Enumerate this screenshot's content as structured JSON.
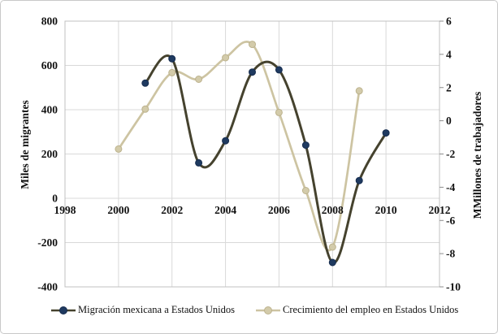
{
  "chart_data": {
    "type": "line",
    "smooth": true,
    "title": "",
    "x_axis": {
      "min": 1998,
      "max": 2012,
      "step": 2,
      "tick_labels": [
        "1998",
        "2000",
        "2002",
        "2004",
        "2006",
        "2008",
        "2010",
        "2012"
      ]
    },
    "left_axis": {
      "title": "Miles de migrantes",
      "min": -400,
      "max": 800,
      "step": 200,
      "tick_labels": [
        "800",
        "600",
        "400",
        "200",
        "0",
        "-200",
        "-400"
      ]
    },
    "right_axis": {
      "title": "MMillones de trabajadores",
      "min": -10,
      "max": 6,
      "step": 2,
      "tick_labels": [
        "6",
        "4",
        "2",
        "0",
        "-2",
        "-4",
        "-6",
        "-8",
        "-10"
      ]
    },
    "series": [
      {
        "name": "Migración mexicana a Estados Unidos",
        "axis": "left",
        "x": [
          2001,
          2002,
          2003,
          2004,
          2005,
          2006,
          2007,
          2008,
          2009,
          2010
        ],
        "values": [
          520,
          630,
          160,
          260,
          570,
          580,
          240,
          -290,
          80,
          295
        ],
        "line_color": "#45422e",
        "marker_color": "#1f3a60",
        "marker_edge": "#162c4e"
      },
      {
        "name": "Crecimiento del empleo en Estados Unidos",
        "axis": "right",
        "x": [
          2000,
          2001,
          2002,
          2003,
          2004,
          2005,
          2006,
          2007,
          2008,
          2009
        ],
        "values": [
          -1.7,
          0.7,
          2.9,
          2.5,
          3.8,
          4.6,
          0.5,
          -4.2,
          -7.6,
          1.8
        ],
        "line_color": "#cdc4a2",
        "marker_color": "#d3cbaa",
        "marker_edge": "#bcb28d"
      }
    ],
    "grid": {
      "gridline_color": "#d9d9d9",
      "frame_color": "#c1c1c1",
      "tick_color": "#8c8c8c"
    }
  }
}
